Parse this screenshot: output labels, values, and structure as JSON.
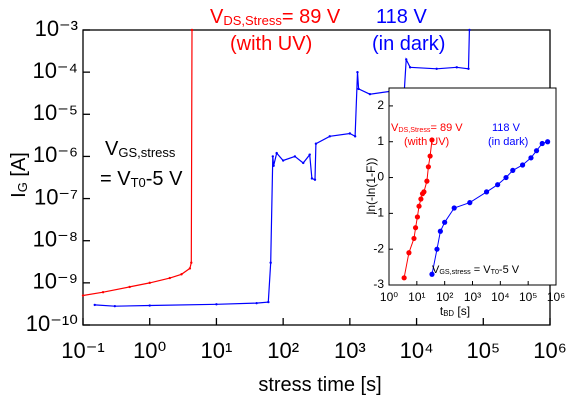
{
  "chart_data": [
    {
      "type": "line",
      "xlog": true,
      "ylog": true,
      "x_label": [
        "stress time [s]"
      ],
      "y_label": [
        "I",
        "G",
        " [A]"
      ],
      "xlim": [
        0.1,
        1000000
      ],
      "ylim": [
        1e-10,
        0.001
      ],
      "xticks": [
        {
          "value": 0.1,
          "label": "10⁻¹"
        },
        {
          "value": 1,
          "label": "10⁰"
        },
        {
          "value": 10,
          "label": "10¹"
        },
        {
          "value": 100,
          "label": "10²"
        },
        {
          "value": 1000,
          "label": "10³"
        },
        {
          "value": 10000,
          "label": "10⁴"
        },
        {
          "value": 100000,
          "label": "10⁵"
        },
        {
          "value": 1000000,
          "label": "10⁶"
        }
      ],
      "yticks": [
        {
          "value": 1e-10,
          "label": "10⁻¹⁰"
        },
        {
          "value": 1e-09,
          "label": "10⁻⁹"
        },
        {
          "value": 1e-08,
          "label": "10⁻⁸"
        },
        {
          "value": 1e-07,
          "label": "10⁻⁷"
        },
        {
          "value": 1e-06,
          "label": "10⁻⁶"
        },
        {
          "value": 1e-05,
          "label": "10⁻⁵"
        },
        {
          "value": 0.0001,
          "label": "10⁻⁴"
        },
        {
          "value": 0.001,
          "label": "10⁻³"
        }
      ],
      "series": [
        {
          "color": "#ff0000",
          "x": [
            0.1,
            0.2,
            0.5,
            1,
            2,
            3,
            4,
            4.2,
            4.3
          ],
          "values": [
            5e-10,
            6e-10,
            8e-10,
            1e-09,
            1.3e-09,
            1.6e-09,
            2.2e-09,
            3e-09,
            0.001
          ]
        },
        {
          "color": "#0000ff",
          "x": [
            0.15,
            0.3,
            1,
            10,
            40,
            60,
            65,
            70,
            72,
            80,
            100,
            150,
            200,
            250,
            270,
            300,
            310,
            500,
            1000,
            1200,
            1300,
            1350,
            2000,
            4000,
            6500,
            7000,
            8000,
            20000,
            40000,
            60000,
            62000
          ],
          "values": [
            3e-10,
            2.8e-10,
            2.9e-10,
            3.1e-10,
            3.3e-10,
            3.5e-10,
            3e-09,
            1e-06,
            6e-07,
            1.2e-06,
            8e-07,
            1e-06,
            7e-07,
            1.1e-06,
            3e-07,
            2.8e-07,
            2e-06,
            3e-06,
            3.5e-06,
            3e-06,
            0.0001,
            4e-05,
            3e-05,
            3.5e-05,
            3e-05,
            0.0002,
            0.00013,
            0.00012,
            0.00013,
            0.00012,
            0.001
          ]
        }
      ],
      "annotations": [
        {
          "color": "#ff0000",
          "parts": [
            "V",
            "DS,Stress",
            "= 89 V"
          ]
        },
        {
          "color": "#ff0000",
          "parts": [
            "(with UV)"
          ]
        },
        {
          "color": "#0000ff",
          "parts": [
            "118 V"
          ]
        },
        {
          "color": "#0000ff",
          "parts": [
            "(in dark)"
          ]
        },
        {
          "color": "#000000",
          "parts": [
            "V",
            "GS,stress"
          ]
        },
        {
          "color": "#000000",
          "parts": [
            "= V",
            "T0",
            "-5 V"
          ]
        }
      ]
    },
    {
      "type": "line",
      "markers": true,
      "xlog": true,
      "ylog": false,
      "x_label": [
        "t",
        "BD",
        " [s]"
      ],
      "y_label": [
        "ln(-ln(1-F))"
      ],
      "xlim": [
        1,
        1000000
      ],
      "ylim": [
        -3,
        2.5
      ],
      "xticks": [
        {
          "value": 1,
          "label": "10⁰"
        },
        {
          "value": 10,
          "label": "10¹"
        },
        {
          "value": 100,
          "label": "10²"
        },
        {
          "value": 1000,
          "label": "10³"
        },
        {
          "value": 10000,
          "label": "10⁴"
        },
        {
          "value": 100000,
          "label": "10⁵"
        },
        {
          "value": 1000000,
          "label": "10⁶"
        }
      ],
      "yticks": [
        -3,
        -2,
        -1,
        0,
        1,
        2
      ],
      "series": [
        {
          "color": "#ff0000",
          "x": [
            3.5,
            5.2,
            7.9,
            9,
            10.5,
            12,
            14,
            16,
            18,
            23,
            26,
            30,
            35
          ],
          "values": [
            -2.8,
            -2.1,
            -1.7,
            -1.4,
            -1.1,
            -0.8,
            -0.6,
            -0.45,
            -0.4,
            -0.1,
            0.3,
            0.6,
            1.05
          ]
        },
        {
          "color": "#0000ff",
          "x": [
            35,
            53,
            70,
            100,
            220,
            800,
            3200,
            8000,
            16000,
            28000,
            63000,
            126000,
            200000,
            320000,
            500000
          ],
          "values": [
            -2.7,
            -2.0,
            -1.5,
            -1.25,
            -0.85,
            -0.7,
            -0.4,
            -0.2,
            0,
            0.2,
            0.35,
            0.55,
            0.75,
            0.95,
            1.0
          ]
        }
      ],
      "annotations": [
        {
          "color": "#ff0000",
          "parts": [
            "V",
            "DS,Stress",
            "= 89 V"
          ]
        },
        {
          "color": "#ff0000",
          "parts": [
            "(with UV)"
          ]
        },
        {
          "color": "#0000ff",
          "parts": [
            "118 V"
          ]
        },
        {
          "color": "#0000ff",
          "parts": [
            "(in dark)"
          ]
        },
        {
          "color": "#000000",
          "parts": [
            "V",
            "GS,stress",
            " = V",
            "T0",
            "-5 V"
          ]
        }
      ]
    }
  ]
}
